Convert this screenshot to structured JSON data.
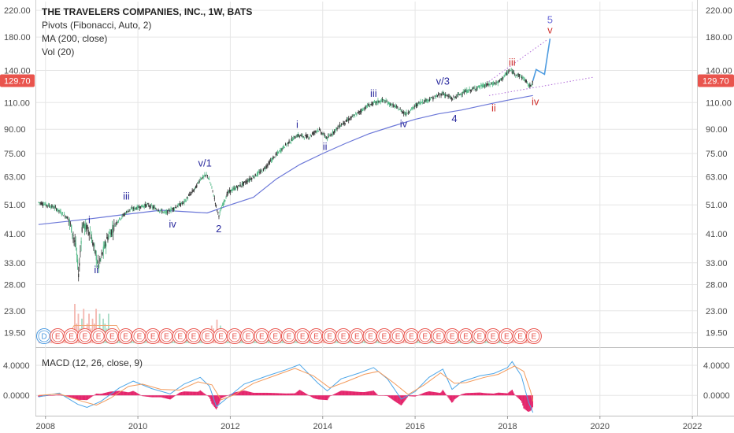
{
  "chart_data": {
    "type": "candlestick",
    "header": {
      "title": "THE TRAVELERS COMPANIES, INC., 1W, BATS",
      "indicators": [
        "Pivots (Fibonacci, Auto, 2)",
        "MA (200, close)",
        "Vol (20)"
      ]
    },
    "last_price": {
      "value": 129.7,
      "label": "129.70",
      "color": "#e9544d"
    },
    "price_axis": {
      "scale": "log",
      "ticks": [
        {
          "value": 220,
          "label": "220.00"
        },
        {
          "value": 180,
          "label": "180.00"
        },
        {
          "value": 140,
          "label": "140.00"
        },
        {
          "value": 110,
          "label": "110.00"
        },
        {
          "value": 90,
          "label": "90.00"
        },
        {
          "value": 75,
          "label": "75.00"
        },
        {
          "value": 63,
          "label": "63.00"
        },
        {
          "value": 51,
          "label": "51.00"
        },
        {
          "value": 41,
          "label": "41.00"
        },
        {
          "value": 33,
          "label": "33.00"
        },
        {
          "value": 28,
          "label": "28.00"
        },
        {
          "value": 23,
          "label": "23.00"
        },
        {
          "value": 19.5,
          "label": "19.50"
        }
      ],
      "range": [
        17.5,
        235
      ]
    },
    "time_axis": {
      "range": [
        2007.8,
        2022.1
      ],
      "ticks": [
        {
          "value": 2008,
          "label": "2008"
        },
        {
          "value": 2010,
          "label": "2010"
        },
        {
          "value": 2012,
          "label": "2012"
        },
        {
          "value": 2014,
          "label": "2014"
        },
        {
          "value": 2016,
          "label": "2016"
        },
        {
          "value": 2018,
          "label": "2018"
        },
        {
          "value": 2020,
          "label": "2020"
        },
        {
          "value": 2022,
          "label": "2022"
        }
      ],
      "last_tick_label": "2022"
    },
    "price_path": [
      [
        2007.85,
        52
      ],
      [
        2008.2,
        50
      ],
      [
        2008.5,
        46
      ],
      [
        2008.65,
        38
      ],
      [
        2008.72,
        30
      ],
      [
        2008.8,
        44
      ],
      [
        2008.95,
        42
      ],
      [
        2009.15,
        32
      ],
      [
        2009.35,
        40
      ],
      [
        2009.55,
        45
      ],
      [
        2009.8,
        49
      ],
      [
        2010.2,
        51
      ],
      [
        2010.6,
        48
      ],
      [
        2011.0,
        52
      ],
      [
        2011.25,
        58
      ],
      [
        2011.35,
        62
      ],
      [
        2011.5,
        64
      ],
      [
        2011.6,
        58
      ],
      [
        2011.7,
        50
      ],
      [
        2011.75,
        47
      ],
      [
        2011.95,
        56
      ],
      [
        2012.3,
        60
      ],
      [
        2012.7,
        66
      ],
      [
        2013.2,
        80
      ],
      [
        2013.45,
        86
      ],
      [
        2013.7,
        85
      ],
      [
        2013.9,
        90
      ],
      [
        2014.1,
        84
      ],
      [
        2014.35,
        92
      ],
      [
        2014.7,
        100
      ],
      [
        2015.0,
        108
      ],
      [
        2015.3,
        112
      ],
      [
        2015.6,
        106
      ],
      [
        2015.8,
        101
      ],
      [
        2016.1,
        110
      ],
      [
        2016.4,
        114
      ],
      [
        2016.6,
        118
      ],
      [
        2016.8,
        113
      ],
      [
        2017.0,
        118
      ],
      [
        2017.4,
        124
      ],
      [
        2017.8,
        128
      ],
      [
        2018.05,
        140
      ],
      [
        2018.2,
        136
      ],
      [
        2018.35,
        132
      ],
      [
        2018.48,
        124
      ],
      [
        2018.55,
        129.7
      ]
    ],
    "ma200_path": [
      [
        2007.85,
        44
      ],
      [
        2009.0,
        46
      ],
      [
        2009.5,
        47
      ],
      [
        2010.5,
        49
      ],
      [
        2011.5,
        48
      ],
      [
        2012.0,
        51
      ],
      [
        2012.5,
        54
      ],
      [
        2013.0,
        62
      ],
      [
        2013.5,
        69
      ],
      [
        2014.0,
        75
      ],
      [
        2014.5,
        81
      ],
      [
        2015.0,
        87
      ],
      [
        2015.5,
        92
      ],
      [
        2016.0,
        97
      ],
      [
        2016.5,
        101
      ],
      [
        2017.0,
        104
      ],
      [
        2017.5,
        108
      ],
      [
        2018.0,
        112
      ],
      [
        2018.55,
        116
      ]
    ],
    "projection_path": [
      [
        2018.55,
        129.7
      ],
      [
        2018.62,
        141
      ],
      [
        2018.8,
        136
      ],
      [
        2018.92,
        178
      ]
    ],
    "wedge_lines": [
      {
        "from": [
          2017.6,
          129
        ],
        "to": [
          2018.85,
          176
        ]
      },
      {
        "from": [
          2017.6,
          116
        ],
        "to": [
          2019.85,
          133
        ]
      }
    ],
    "wave_labels": [
      {
        "text": "i",
        "x": 2008.95,
        "y": 44.5,
        "color": "#2b2b9e"
      },
      {
        "text": "ii",
        "x": 2009.1,
        "y": 30.5,
        "color": "#2b2b9e"
      },
      {
        "text": "iii",
        "x": 2009.75,
        "y": 53,
        "color": "#2b2b9e"
      },
      {
        "text": "iv",
        "x": 2010.75,
        "y": 43,
        "color": "#2b2b9e"
      },
      {
        "text": "v/1",
        "x": 2011.45,
        "y": 68,
        "color": "#2b2b9e"
      },
      {
        "text": "2",
        "x": 2011.75,
        "y": 41.5,
        "color": "#2b2b9e"
      },
      {
        "text": "i",
        "x": 2013.45,
        "y": 91,
        "color": "#2b2b9e"
      },
      {
        "text": "ii",
        "x": 2014.05,
        "y": 77,
        "color": "#2b2b9e"
      },
      {
        "text": "iii",
        "x": 2015.1,
        "y": 115,
        "color": "#2b2b9e"
      },
      {
        "text": "iv",
        "x": 2015.75,
        "y": 91.5,
        "color": "#2b2b9e"
      },
      {
        "text": "v/3",
        "x": 2016.6,
        "y": 126,
        "color": "#2b2b9e"
      },
      {
        "text": "4",
        "x": 2016.85,
        "y": 95,
        "color": "#2b2b9e"
      },
      {
        "text": "iii",
        "x": 2018.1,
        "y": 145,
        "color": "#d0312d"
      },
      {
        "text": "ii",
        "x": 2017.7,
        "y": 103,
        "color": "#d0312d"
      },
      {
        "text": "iv",
        "x": 2018.6,
        "y": 108,
        "color": "#d0312d"
      },
      {
        "text": "v",
        "x": 2018.92,
        "y": 185,
        "color": "#d0312d"
      },
      {
        "text": "5",
        "x": 2018.92,
        "y": 200,
        "color": "#6b6bd8"
      }
    ],
    "volume_pattern": [
      3,
      5,
      2,
      7,
      4,
      6,
      3,
      8,
      5,
      4,
      9,
      6,
      3,
      5,
      7,
      4,
      2,
      6,
      5,
      3,
      8,
      4,
      6,
      3,
      5,
      7,
      2,
      4,
      6,
      3,
      5,
      4,
      7,
      3,
      6,
      2,
      5,
      4,
      3,
      6
    ],
    "volume_range": [
      0,
      60
    ],
    "event_marks": {
      "first_label": "D",
      "label": "E",
      "start": 2007.97,
      "end": 2018.57,
      "count": 37
    },
    "macd": {
      "title": "MACD (12, 26, close, 9)",
      "ticks": [
        {
          "value": 4,
          "label": "4.0000"
        },
        {
          "value": 0,
          "label": "0.0000"
        }
      ],
      "range": [
        -2.6,
        6.1
      ],
      "macd_path": [
        [
          2007.85,
          -0.2
        ],
        [
          2008.3,
          0.3
        ],
        [
          2008.7,
          -1.2
        ],
        [
          2008.9,
          -1.6
        ],
        [
          2009.2,
          -0.8
        ],
        [
          2009.6,
          1.0
        ],
        [
          2009.9,
          1.9
        ],
        [
          2010.3,
          0.9
        ],
        [
          2010.7,
          0.2
        ],
        [
          2011.0,
          1.5
        ],
        [
          2011.35,
          2.4
        ],
        [
          2011.55,
          1.2
        ],
        [
          2011.7,
          -1.5
        ],
        [
          2011.9,
          -0.5
        ],
        [
          2012.3,
          1.5
        ],
        [
          2012.8,
          2.6
        ],
        [
          2013.2,
          3.4
        ],
        [
          2013.5,
          4.1
        ],
        [
          2013.9,
          1.6
        ],
        [
          2014.1,
          0.6
        ],
        [
          2014.4,
          2.2
        ],
        [
          2014.8,
          3.0
        ],
        [
          2015.1,
          3.7
        ],
        [
          2015.4,
          2.2
        ],
        [
          2015.7,
          -0.5
        ],
        [
          2016.0,
          0.5
        ],
        [
          2016.3,
          2.4
        ],
        [
          2016.6,
          3.5
        ],
        [
          2016.8,
          0.8
        ],
        [
          2017.0,
          1.8
        ],
        [
          2017.4,
          2.6
        ],
        [
          2017.7,
          2.9
        ],
        [
          2018.0,
          3.7
        ],
        [
          2018.1,
          4.5
        ],
        [
          2018.3,
          2.6
        ],
        [
          2018.45,
          -0.8
        ],
        [
          2018.55,
          -2.3
        ]
      ],
      "signal_path": [
        [
          2007.85,
          0.0
        ],
        [
          2008.3,
          0.2
        ],
        [
          2008.8,
          -0.8
        ],
        [
          2009.1,
          -1.3
        ],
        [
          2009.4,
          -0.4
        ],
        [
          2009.8,
          1.2
        ],
        [
          2010.1,
          1.5
        ],
        [
          2010.5,
          0.8
        ],
        [
          2010.9,
          0.7
        ],
        [
          2011.3,
          1.8
        ],
        [
          2011.6,
          1.4
        ],
        [
          2011.8,
          -0.6
        ],
        [
          2012.1,
          0.1
        ],
        [
          2012.5,
          1.6
        ],
        [
          2013.0,
          2.7
        ],
        [
          2013.4,
          3.6
        ],
        [
          2013.8,
          2.6
        ],
        [
          2014.15,
          1.0
        ],
        [
          2014.5,
          1.8
        ],
        [
          2014.9,
          2.8
        ],
        [
          2015.2,
          3.2
        ],
        [
          2015.55,
          1.6
        ],
        [
          2015.85,
          0.1
        ],
        [
          2016.2,
          1.4
        ],
        [
          2016.55,
          3.0
        ],
        [
          2016.85,
          1.6
        ],
        [
          2017.1,
          1.7
        ],
        [
          2017.5,
          2.4
        ],
        [
          2017.8,
          2.8
        ],
        [
          2018.15,
          3.9
        ],
        [
          2018.35,
          3.2
        ],
        [
          2018.5,
          0.5
        ],
        [
          2018.55,
          -0.8
        ]
      ]
    },
    "colors": {
      "up_candle": "#53b987",
      "down_candle": "#333333",
      "ma": "#6b77d8",
      "projection": "#4d9be0",
      "wedge": "#b06ad8",
      "volume_up": "#a8dcc6",
      "volume_down": "#f4b7b0",
      "volume_ma": "#f0a875",
      "event_stroke": "#e9544d",
      "event_first_stroke": "#4d9be0",
      "macd_line": "#4da6e8",
      "signal_line": "#f39a5b",
      "histogram": "#e4266c",
      "grid": "#e6e6e6"
    }
  }
}
